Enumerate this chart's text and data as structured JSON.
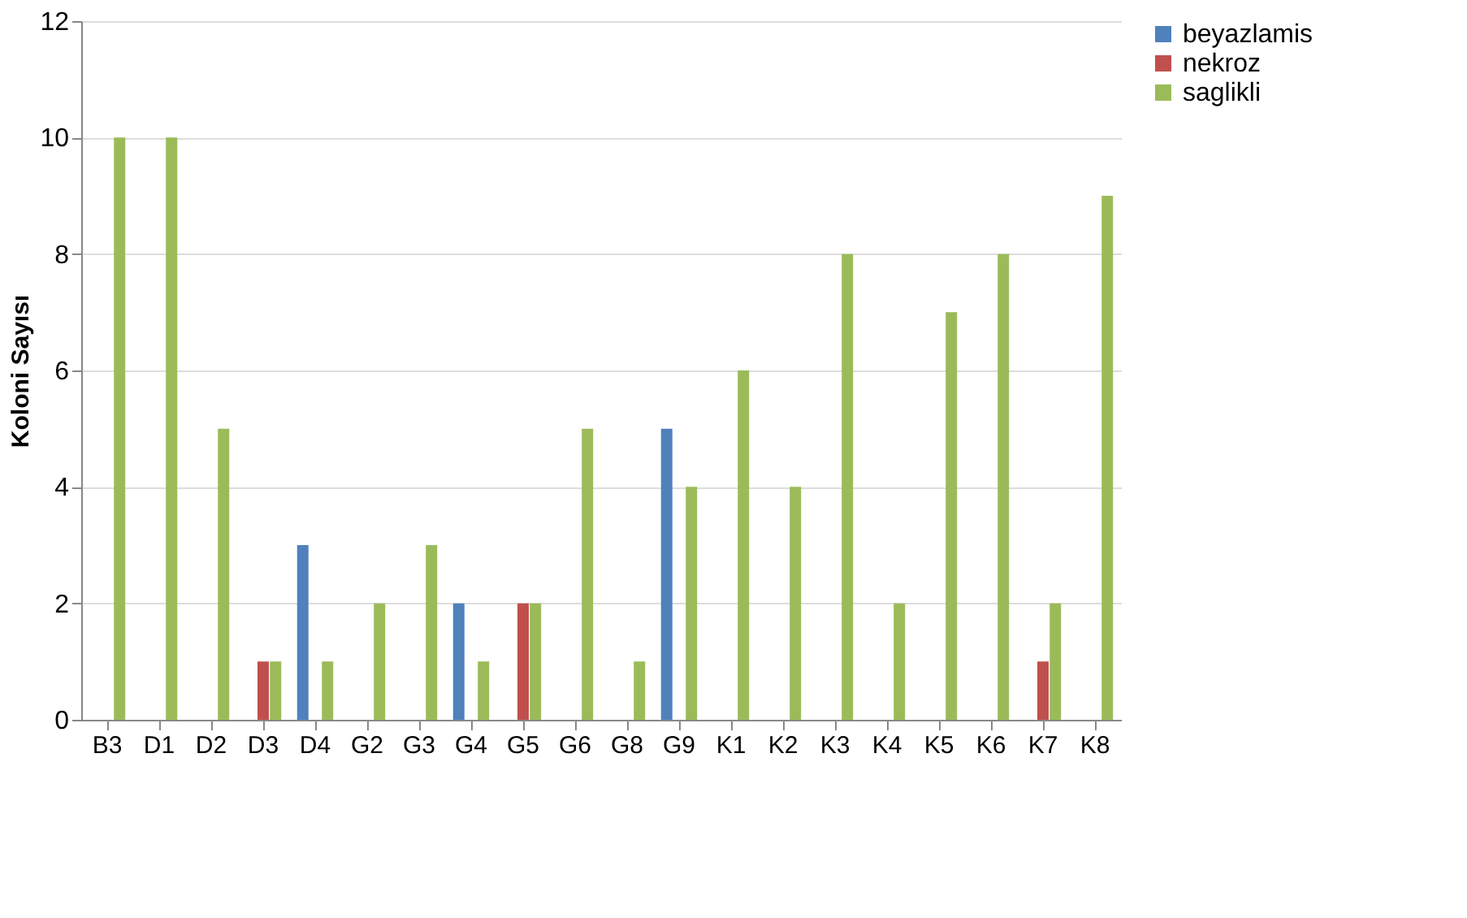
{
  "chart_data": {
    "type": "bar",
    "ylabel": "Koloni Sayısı",
    "categories": [
      "B3",
      "D1",
      "D2",
      "D3",
      "D4",
      "G2",
      "G3",
      "G4",
      "G5",
      "G6",
      "G8",
      "G9",
      "K1",
      "K2",
      "K3",
      "K4",
      "K5",
      "K6",
      "K7",
      "K8"
    ],
    "series": [
      {
        "name": "beyazlamis",
        "color": "#4f81bd",
        "values": [
          null,
          null,
          null,
          null,
          3,
          null,
          null,
          2,
          null,
          null,
          null,
          5,
          null,
          null,
          null,
          null,
          null,
          null,
          null,
          null
        ]
      },
      {
        "name": "nekroz",
        "color": "#c0504d",
        "values": [
          null,
          null,
          null,
          1,
          null,
          null,
          null,
          null,
          2,
          null,
          null,
          null,
          null,
          null,
          null,
          null,
          null,
          null,
          1,
          null
        ]
      },
      {
        "name": "saglikli",
        "color": "#9bbb59",
        "values": [
          10,
          10,
          5,
          1,
          1,
          2,
          3,
          1,
          2,
          5,
          1,
          4,
          6,
          4,
          8,
          2,
          7,
          8,
          2,
          9
        ]
      }
    ],
    "ylim": [
      0,
      12
    ],
    "yticks": [
      0,
      2,
      4,
      6,
      8,
      10,
      12
    ],
    "grid": "y",
    "legend": "right"
  }
}
